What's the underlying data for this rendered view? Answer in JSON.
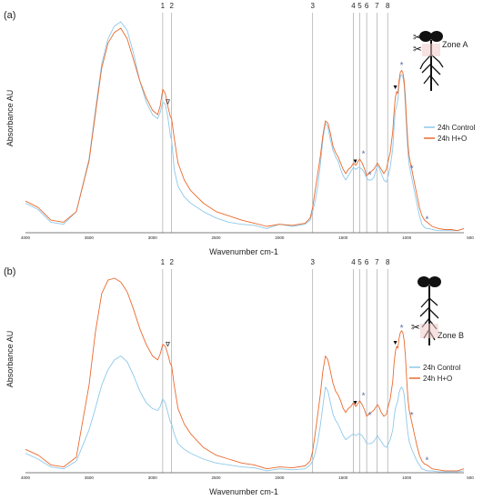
{
  "colors": {
    "control": "#8ec9ea",
    "treatment": "#ea6a2e",
    "vline": "#9a9a9a",
    "axis": "#555555",
    "text": "#222222",
    "asterisk": "#5b6fa5"
  },
  "panel_labels": [
    "(a)",
    "(b)"
  ],
  "legend_labels": [
    "24h Control",
    "24h H+O"
  ],
  "zone_labels": [
    "Zone A",
    "Zone B"
  ],
  "marker_symbols": {
    "open_triangle": "∇",
    "filled_triangle": "▼",
    "asterisk": "*"
  },
  "chart_data": [
    {
      "type": "line",
      "panel": "(a)",
      "xlabel": "Wavenumber cm-1",
      "ylabel": "Absorbance AU",
      "x_ticks": [
        4000,
        3500,
        3000,
        2500,
        2000,
        1500,
        1000,
        500
      ],
      "xlim": [
        4000,
        550
      ],
      "ylim": [
        0,
        1
      ],
      "grid": false,
      "legend_position": "right",
      "vlines": [
        {
          "label": "1",
          "x": 2920
        },
        {
          "label": "2",
          "x": 2850
        },
        {
          "label": "3",
          "x": 1740
        },
        {
          "label": "4",
          "x": 1420
        },
        {
          "label": "5",
          "x": 1370
        },
        {
          "label": "6",
          "x": 1315
        },
        {
          "label": "7",
          "x": 1235
        },
        {
          "label": "8",
          "x": 1150
        }
      ],
      "annotations": [
        {
          "symbol": "∇",
          "x": 2880,
          "y": 0.61,
          "series": "24h H+O"
        },
        {
          "symbol": "▼",
          "x": 1405,
          "y": 0.33,
          "series": "24h H+O"
        },
        {
          "symbol": "*",
          "x": 1340,
          "y": 0.36,
          "series": "24h H+O"
        },
        {
          "symbol": "*",
          "x": 1290,
          "y": 0.26,
          "series": "24h H+O"
        },
        {
          "symbol": "▼",
          "x": 1090,
          "y": 0.68,
          "series": "24h H+O"
        },
        {
          "symbol": "*",
          "x": 1040,
          "y": 0.78,
          "series": "24h H+O"
        },
        {
          "symbol": "*",
          "x": 960,
          "y": 0.29,
          "series": "24h H+O"
        },
        {
          "symbol": "*",
          "x": 840,
          "y": 0.05,
          "series": "24h H+O"
        }
      ],
      "series": [
        {
          "name": "24h Control",
          "color": "#8ec9ea",
          "x": [
            4000,
            3900,
            3800,
            3700,
            3600,
            3500,
            3450,
            3400,
            3350,
            3300,
            3250,
            3200,
            3150,
            3100,
            3050,
            3000,
            2960,
            2940,
            2920,
            2900,
            2880,
            2860,
            2850,
            2830,
            2800,
            2750,
            2700,
            2600,
            2500,
            2400,
            2300,
            2200,
            2100,
            2000,
            1900,
            1800,
            1760,
            1740,
            1720,
            1700,
            1680,
            1660,
            1640,
            1620,
            1600,
            1580,
            1560,
            1540,
            1520,
            1500,
            1480,
            1460,
            1440,
            1420,
            1400,
            1380,
            1370,
            1350,
            1330,
            1315,
            1300,
            1280,
            1260,
            1240,
            1230,
            1220,
            1200,
            1180,
            1160,
            1150,
            1130,
            1110,
            1100,
            1090,
            1080,
            1070,
            1060,
            1050,
            1040,
            1030,
            1020,
            1010,
            1000,
            990,
            980,
            960,
            940,
            920,
            900,
            880,
            860,
            840,
            820,
            800,
            750,
            700,
            650,
            600,
            550
          ],
          "y": [
            0.14,
            0.11,
            0.05,
            0.04,
            0.1,
            0.35,
            0.58,
            0.8,
            0.92,
            0.98,
            1.0,
            0.96,
            0.85,
            0.72,
            0.62,
            0.56,
            0.54,
            0.57,
            0.62,
            0.61,
            0.55,
            0.46,
            0.44,
            0.3,
            0.22,
            0.17,
            0.14,
            0.1,
            0.07,
            0.05,
            0.04,
            0.035,
            0.02,
            0.04,
            0.03,
            0.04,
            0.06,
            0.1,
            0.15,
            0.22,
            0.32,
            0.44,
            0.52,
            0.5,
            0.44,
            0.39,
            0.36,
            0.34,
            0.3,
            0.27,
            0.25,
            0.27,
            0.29,
            0.31,
            0.3,
            0.31,
            0.31,
            0.3,
            0.28,
            0.26,
            0.25,
            0.25,
            0.26,
            0.3,
            0.32,
            0.31,
            0.28,
            0.25,
            0.24,
            0.26,
            0.31,
            0.4,
            0.5,
            0.58,
            0.6,
            0.63,
            0.7,
            0.74,
            0.75,
            0.74,
            0.7,
            0.6,
            0.48,
            0.38,
            0.32,
            0.26,
            0.2,
            0.14,
            0.08,
            0.04,
            0.025,
            0.02,
            0.02,
            0.015,
            0.01,
            0.01,
            0.01,
            0.01,
            0.02
          ]
        },
        {
          "name": "24h H+O",
          "color": "#ea6a2e",
          "x": [
            4000,
            3900,
            3800,
            3700,
            3600,
            3500,
            3450,
            3400,
            3350,
            3300,
            3250,
            3200,
            3150,
            3100,
            3050,
            3000,
            2960,
            2940,
            2920,
            2900,
            2880,
            2860,
            2850,
            2830,
            2800,
            2750,
            2700,
            2600,
            2500,
            2400,
            2300,
            2200,
            2100,
            2000,
            1900,
            1800,
            1760,
            1740,
            1720,
            1700,
            1680,
            1660,
            1640,
            1620,
            1600,
            1580,
            1560,
            1540,
            1520,
            1500,
            1480,
            1460,
            1440,
            1420,
            1400,
            1380,
            1370,
            1350,
            1330,
            1315,
            1300,
            1280,
            1260,
            1240,
            1230,
            1220,
            1200,
            1180,
            1160,
            1150,
            1130,
            1110,
            1100,
            1090,
            1080,
            1070,
            1060,
            1050,
            1040,
            1030,
            1020,
            1010,
            1000,
            990,
            980,
            960,
            940,
            920,
            900,
            880,
            860,
            840,
            820,
            800,
            750,
            700,
            650,
            600,
            550
          ],
          "y": [
            0.15,
            0.12,
            0.06,
            0.05,
            0.1,
            0.34,
            0.56,
            0.78,
            0.9,
            0.95,
            0.97,
            0.92,
            0.82,
            0.72,
            0.64,
            0.58,
            0.56,
            0.6,
            0.68,
            0.66,
            0.6,
            0.55,
            0.54,
            0.45,
            0.33,
            0.25,
            0.2,
            0.14,
            0.1,
            0.08,
            0.06,
            0.045,
            0.03,
            0.04,
            0.035,
            0.045,
            0.07,
            0.12,
            0.2,
            0.28,
            0.36,
            0.46,
            0.53,
            0.52,
            0.47,
            0.41,
            0.38,
            0.36,
            0.33,
            0.3,
            0.28,
            0.3,
            0.31,
            0.33,
            0.32,
            0.34,
            0.35,
            0.33,
            0.3,
            0.27,
            0.28,
            0.29,
            0.3,
            0.32,
            0.33,
            0.32,
            0.3,
            0.28,
            0.3,
            0.33,
            0.38,
            0.48,
            0.57,
            0.64,
            0.67,
            0.66,
            0.72,
            0.76,
            0.77,
            0.76,
            0.72,
            0.64,
            0.52,
            0.42,
            0.36,
            0.3,
            0.24,
            0.18,
            0.12,
            0.08,
            0.06,
            0.05,
            0.04,
            0.03,
            0.02,
            0.015,
            0.015,
            0.01,
            0.02
          ]
        }
      ]
    },
    {
      "type": "line",
      "panel": "(b)",
      "xlabel": "Wavenumber cm-1",
      "ylabel": "Absorbance AU",
      "x_ticks": [
        4000,
        3500,
        3000,
        2500,
        2000,
        1500,
        1000,
        500
      ],
      "xlim": [
        4000,
        550
      ],
      "ylim": [
        0,
        1
      ],
      "grid": false,
      "legend_position": "right",
      "vlines": [
        {
          "label": "1",
          "x": 2920
        },
        {
          "label": "2",
          "x": 2850
        },
        {
          "label": "3",
          "x": 1740
        },
        {
          "label": "4",
          "x": 1420
        },
        {
          "label": "5",
          "x": 1370
        },
        {
          "label": "6",
          "x": 1315
        },
        {
          "label": "7",
          "x": 1235
        },
        {
          "label": "8",
          "x": 1150
        }
      ],
      "annotations": [
        {
          "symbol": "∇",
          "x": 2880,
          "y": 0.65,
          "series": "24h H+O"
        },
        {
          "symbol": "▼",
          "x": 1405,
          "y": 0.35,
          "series": "24h H+O"
        },
        {
          "symbol": "*",
          "x": 1340,
          "y": 0.38,
          "series": "24h H+O"
        },
        {
          "symbol": "*",
          "x": 1290,
          "y": 0.28,
          "series": "24h H+O"
        },
        {
          "symbol": "▼",
          "x": 1090,
          "y": 0.66,
          "series": "24h H+O"
        },
        {
          "symbol": "*",
          "x": 1040,
          "y": 0.73,
          "series": "24h H+O"
        },
        {
          "symbol": "*",
          "x": 960,
          "y": 0.28,
          "series": "24h H+O"
        },
        {
          "symbol": "*",
          "x": 840,
          "y": 0.05,
          "series": "24h H+O"
        }
      ],
      "series": [
        {
          "name": "24h Control",
          "color": "#8ec9ea",
          "x": [
            4000,
            3900,
            3800,
            3700,
            3600,
            3500,
            3450,
            3400,
            3350,
            3300,
            3250,
            3200,
            3150,
            3100,
            3050,
            3000,
            2960,
            2940,
            2920,
            2900,
            2880,
            2860,
            2850,
            2830,
            2800,
            2750,
            2700,
            2600,
            2500,
            2400,
            2300,
            2200,
            2100,
            2000,
            1900,
            1800,
            1760,
            1740,
            1720,
            1700,
            1680,
            1660,
            1640,
            1620,
            1600,
            1580,
            1560,
            1540,
            1520,
            1500,
            1480,
            1460,
            1440,
            1420,
            1400,
            1380,
            1370,
            1350,
            1330,
            1315,
            1300,
            1280,
            1260,
            1240,
            1230,
            1220,
            1200,
            1180,
            1160,
            1150,
            1130,
            1110,
            1100,
            1090,
            1080,
            1070,
            1060,
            1050,
            1040,
            1030,
            1020,
            1010,
            1000,
            990,
            980,
            960,
            940,
            920,
            900,
            880,
            860,
            840,
            820,
            800,
            750,
            700,
            650,
            600,
            550
          ],
          "y": [
            0.1,
            0.07,
            0.03,
            0.02,
            0.06,
            0.22,
            0.33,
            0.45,
            0.53,
            0.58,
            0.6,
            0.57,
            0.5,
            0.42,
            0.36,
            0.33,
            0.32,
            0.34,
            0.38,
            0.36,
            0.31,
            0.26,
            0.25,
            0.2,
            0.15,
            0.12,
            0.1,
            0.07,
            0.05,
            0.04,
            0.03,
            0.025,
            0.01,
            0.02,
            0.015,
            0.02,
            0.04,
            0.06,
            0.1,
            0.16,
            0.24,
            0.34,
            0.44,
            0.42,
            0.36,
            0.3,
            0.27,
            0.25,
            0.22,
            0.19,
            0.17,
            0.18,
            0.19,
            0.2,
            0.19,
            0.2,
            0.2,
            0.19,
            0.17,
            0.15,
            0.15,
            0.15,
            0.16,
            0.18,
            0.19,
            0.18,
            0.16,
            0.14,
            0.13,
            0.14,
            0.17,
            0.22,
            0.28,
            0.33,
            0.35,
            0.37,
            0.41,
            0.43,
            0.44,
            0.43,
            0.4,
            0.33,
            0.26,
            0.2,
            0.16,
            0.12,
            0.09,
            0.06,
            0.04,
            0.02,
            0.015,
            0.01,
            0.01,
            0.01,
            0.005,
            0.005,
            0.005,
            0.005,
            0.01
          ]
        },
        {
          "name": "24h H+O",
          "color": "#ea6a2e",
          "x": [
            4000,
            3900,
            3800,
            3700,
            3600,
            3500,
            3450,
            3400,
            3350,
            3300,
            3250,
            3200,
            3150,
            3100,
            3050,
            3000,
            2960,
            2940,
            2920,
            2900,
            2880,
            2860,
            2850,
            2830,
            2800,
            2750,
            2700,
            2600,
            2500,
            2400,
            2300,
            2200,
            2100,
            2000,
            1900,
            1800,
            1760,
            1740,
            1720,
            1700,
            1680,
            1660,
            1640,
            1620,
            1600,
            1580,
            1560,
            1540,
            1520,
            1500,
            1480,
            1460,
            1440,
            1420,
            1400,
            1380,
            1370,
            1350,
            1330,
            1315,
            1300,
            1280,
            1260,
            1240,
            1230,
            1220,
            1200,
            1180,
            1160,
            1150,
            1130,
            1110,
            1100,
            1090,
            1080,
            1070,
            1060,
            1050,
            1040,
            1030,
            1020,
            1010,
            1000,
            990,
            980,
            960,
            940,
            920,
            900,
            880,
            860,
            840,
            820,
            800,
            750,
            700,
            650,
            600,
            550
          ],
          "y": [
            0.12,
            0.09,
            0.04,
            0.03,
            0.08,
            0.45,
            0.72,
            0.92,
            0.99,
            1.0,
            0.98,
            0.93,
            0.84,
            0.74,
            0.66,
            0.6,
            0.58,
            0.61,
            0.66,
            0.65,
            0.61,
            0.56,
            0.55,
            0.45,
            0.33,
            0.25,
            0.2,
            0.13,
            0.09,
            0.07,
            0.05,
            0.04,
            0.02,
            0.03,
            0.025,
            0.035,
            0.06,
            0.11,
            0.2,
            0.3,
            0.4,
            0.52,
            0.6,
            0.58,
            0.52,
            0.46,
            0.42,
            0.4,
            0.37,
            0.33,
            0.31,
            0.33,
            0.34,
            0.36,
            0.34,
            0.36,
            0.37,
            0.35,
            0.32,
            0.29,
            0.3,
            0.31,
            0.32,
            0.34,
            0.35,
            0.34,
            0.31,
            0.29,
            0.3,
            0.33,
            0.38,
            0.47,
            0.56,
            0.62,
            0.65,
            0.64,
            0.69,
            0.72,
            0.73,
            0.72,
            0.68,
            0.6,
            0.48,
            0.38,
            0.32,
            0.26,
            0.2,
            0.14,
            0.09,
            0.06,
            0.045,
            0.04,
            0.03,
            0.02,
            0.015,
            0.01,
            0.01,
            0.01,
            0.02
          ]
        }
      ]
    }
  ]
}
